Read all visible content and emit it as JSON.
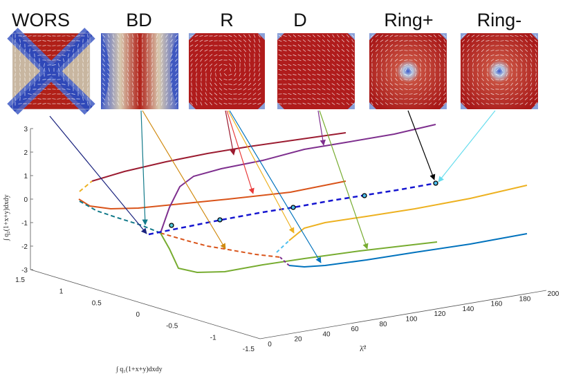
{
  "panels": [
    {
      "title": "WORS",
      "pattern": "wors"
    },
    {
      "title": "BD",
      "pattern": "bd"
    },
    {
      "title": "R",
      "pattern": "r"
    },
    {
      "title": "D",
      "pattern": "d"
    },
    {
      "title": "Ring+",
      "pattern": "ring"
    },
    {
      "title": "Ring-",
      "pattern": "ring"
    }
  ],
  "axes": {
    "vertical_ticks": [
      "3",
      "2",
      "1",
      "0",
      "-1",
      "-2",
      "-3"
    ],
    "vertical_label": "∫ q₂(1+x+y)dxdy",
    "left_ticks": [
      "1.5",
      "1",
      "0.5",
      "0",
      "-0.5",
      "-1",
      "-1.5"
    ],
    "left_label": "∫ q₁(1+x+y)dxdy",
    "right_ticks": [
      "0",
      "20",
      "40",
      "60",
      "80",
      "100",
      "120",
      "140",
      "160",
      "180",
      "200"
    ],
    "right_label": "λ̄²"
  },
  "colors": {
    "dark_red": "#9b1b30",
    "orange": "#d95319",
    "purple": "#7e2f8e",
    "yellow": "#edb120",
    "green": "#77ac30",
    "blue": "#0072bd",
    "cyan": "#4dbeee",
    "dashed_blue": "#1515d0",
    "navy": "#1a237e",
    "teal": "#127a8a",
    "red": "#e83a3a",
    "black": "#000000",
    "light_cyan": "#66ddee"
  }
}
